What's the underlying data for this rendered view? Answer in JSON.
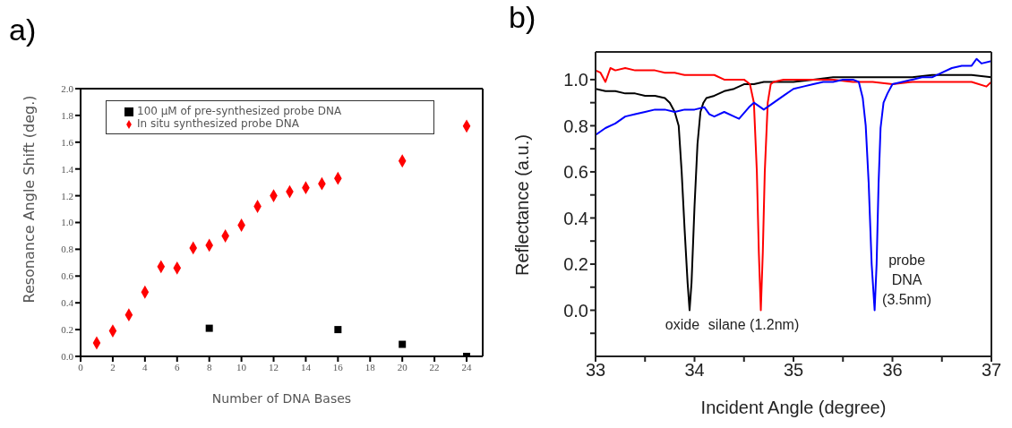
{
  "chart_data": [
    {
      "type": "scatter",
      "title": "a)",
      "xlabel": "Number of DNA Bases",
      "ylabel": "Resonance Angle Shift (deg.)",
      "xlim": [
        0,
        25
      ],
      "xticks": [
        0,
        2,
        4,
        6,
        8,
        10,
        12,
        14,
        16,
        18,
        20,
        22,
        24
      ],
      "ylim": [
        0,
        2
      ],
      "yticks": [
        {
          "value": 0,
          "label": "0.0"
        },
        {
          "value": 0.2,
          "label": "0.2"
        },
        {
          "value": 0.4,
          "label": "0.4"
        },
        {
          "value": 0.6,
          "label": "0.6"
        },
        {
          "value": 0.8,
          "label": "0.8"
        },
        {
          "value": 1,
          "label": "1.0"
        },
        {
          "value": 1.2,
          "label": "1.2"
        },
        {
          "value": 1.4,
          "label": "1.4"
        },
        {
          "value": 1.6,
          "label": "1.6"
        },
        {
          "value": 1.8,
          "label": "1.8"
        },
        {
          "value": 2,
          "label": "2.0"
        }
      ],
      "grid": false,
      "legend": "top left",
      "series": [
        {
          "name": "100 µM of pre-synthesized probe DNA",
          "color": "#000000",
          "marker": "square",
          "x": [
            8,
            16,
            20,
            24
          ],
          "values": [
            0.21,
            0.2,
            0.09,
            0.0
          ]
        },
        {
          "name": "In situ synthesized probe DNA",
          "color": "#ff0000",
          "marker": "diamond",
          "x": [
            1,
            2,
            3,
            4,
            5,
            6,
            7,
            8,
            9,
            10,
            11,
            12,
            13,
            14,
            15,
            16,
            20,
            24
          ],
          "values": [
            0.1,
            0.19,
            0.31,
            0.48,
            0.67,
            0.66,
            0.81,
            0.83,
            0.9,
            0.98,
            1.12,
            1.2,
            1.23,
            1.26,
            1.29,
            1.33,
            1.46,
            1.72
          ]
        }
      ]
    },
    {
      "type": "line",
      "title": "b)",
      "xlabel": "Incident Angle (degree)",
      "ylabel": "Reflectance (a.u.)",
      "xlim": [
        33,
        37
      ],
      "xticks": [
        33,
        {
          "value": 33.5,
          "label": null
        },
        34,
        {
          "value": 34.5,
          "label": null
        },
        35,
        {
          "value": 35.5,
          "label": null
        },
        36,
        {
          "value": 36.5,
          "label": null
        },
        37
      ],
      "ylim": [
        -0.2,
        1.12
      ],
      "yticks": [
        {
          "value": -0.1,
          "label": null
        },
        {
          "value": 0,
          "label": "0.0"
        },
        {
          "value": 0.1,
          "label": null
        },
        {
          "value": 0.2,
          "label": "0.2"
        },
        {
          "value": 0.3,
          "label": null
        },
        {
          "value": 0.4,
          "label": "0.4"
        },
        {
          "value": 0.5,
          "label": null
        },
        {
          "value": 0.6,
          "label": "0.6"
        },
        {
          "value": 0.7,
          "label": null
        },
        {
          "value": 0.8,
          "label": "0.8"
        },
        {
          "value": 0.9,
          "label": null
        },
        {
          "value": 1,
          "label": "1.0"
        }
      ],
      "grid": false,
      "legend": false,
      "marker": "none",
      "line_style": "solid",
      "annotations": [
        {
          "text": "oxide",
          "x": 33.95,
          "y": 0
        },
        {
          "text": "silane (1.2nm)",
          "x": 34.67,
          "y": 0
        },
        {
          "text": "probe\nDNA\n(3.5nm)",
          "x": 35.82,
          "y": 0
        }
      ],
      "series": [
        {
          "color": "#000000",
          "x": [
            33,
            33.1,
            33.2,
            33.3,
            33.4,
            33.5,
            33.6,
            33.7,
            33.75,
            33.8,
            33.84,
            33.87,
            33.9,
            33.93,
            33.95,
            33.97,
            34,
            34.03,
            34.06,
            34.09,
            34.12,
            34.2,
            34.3,
            34.4,
            34.5,
            34.6,
            34.7,
            34.8,
            34.9,
            35,
            35.2,
            35.4,
            35.5,
            35.7,
            35.9,
            36,
            36.2,
            36.4,
            36.6,
            36.8,
            37
          ],
          "values": [
            0.96,
            0.95,
            0.95,
            0.94,
            0.94,
            0.93,
            0.93,
            0.92,
            0.9,
            0.86,
            0.8,
            0.6,
            0.35,
            0.12,
            0.0,
            0.12,
            0.45,
            0.72,
            0.86,
            0.9,
            0.92,
            0.93,
            0.95,
            0.96,
            0.98,
            0.98,
            0.99,
            0.99,
            0.99,
            0.99,
            1.0,
            1.01,
            1.01,
            1.01,
            1.01,
            1.01,
            1.01,
            1.02,
            1.02,
            1.02,
            1.01
          ]
        },
        {
          "color": "#ff0000",
          "x": [
            33,
            33.05,
            33.1,
            33.15,
            33.2,
            33.3,
            33.4,
            33.5,
            33.6,
            33.7,
            33.8,
            33.9,
            34,
            34.1,
            34.2,
            34.3,
            34.4,
            34.5,
            34.56,
            34.6,
            34.63,
            34.65,
            34.67,
            34.69,
            34.71,
            34.74,
            34.77,
            34.8,
            34.9,
            35,
            35.2,
            35.4,
            35.6,
            35.8,
            36,
            36.2,
            36.4,
            36.6,
            36.8,
            36.95,
            37
          ],
          "values": [
            1.04,
            1.03,
            0.99,
            1.05,
            1.04,
            1.05,
            1.04,
            1.04,
            1.04,
            1.03,
            1.03,
            1.02,
            1.02,
            1.02,
            1.02,
            1.0,
            1.0,
            1.0,
            0.98,
            0.9,
            0.6,
            0.25,
            0.0,
            0.25,
            0.6,
            0.9,
            0.98,
            0.99,
            1.0,
            1.0,
            1.0,
            1.0,
            0.99,
            0.99,
            0.98,
            0.99,
            0.99,
            0.99,
            0.99,
            0.97,
            0.99
          ]
        },
        {
          "color": "#0000ff",
          "x": [
            33,
            33.1,
            33.2,
            33.3,
            33.4,
            33.5,
            33.6,
            33.7,
            33.8,
            33.9,
            34,
            34.1,
            34.15,
            34.2,
            34.3,
            34.4,
            34.45,
            34.55,
            34.6,
            34.7,
            34.8,
            34.9,
            35,
            35.1,
            35.2,
            35.3,
            35.4,
            35.5,
            35.6,
            35.66,
            35.7,
            35.73,
            35.76,
            35.79,
            35.82,
            35.84,
            35.86,
            35.88,
            35.91,
            35.95,
            36,
            36.1,
            36.2,
            36.3,
            36.4,
            36.5,
            36.6,
            36.7,
            36.8,
            36.85,
            36.9,
            37
          ],
          "values": [
            0.76,
            0.79,
            0.81,
            0.84,
            0.85,
            0.86,
            0.87,
            0.87,
            0.86,
            0.87,
            0.87,
            0.88,
            0.85,
            0.84,
            0.86,
            0.84,
            0.83,
            0.88,
            0.9,
            0.87,
            0.9,
            0.93,
            0.96,
            0.97,
            0.98,
            0.99,
            0.99,
            1.0,
            1.0,
            0.99,
            0.92,
            0.8,
            0.55,
            0.2,
            0.0,
            0.2,
            0.55,
            0.79,
            0.9,
            0.94,
            0.98,
            0.99,
            1.0,
            1.01,
            1.01,
            1.03,
            1.05,
            1.06,
            1.06,
            1.09,
            1.07,
            1.08
          ]
        }
      ]
    }
  ]
}
